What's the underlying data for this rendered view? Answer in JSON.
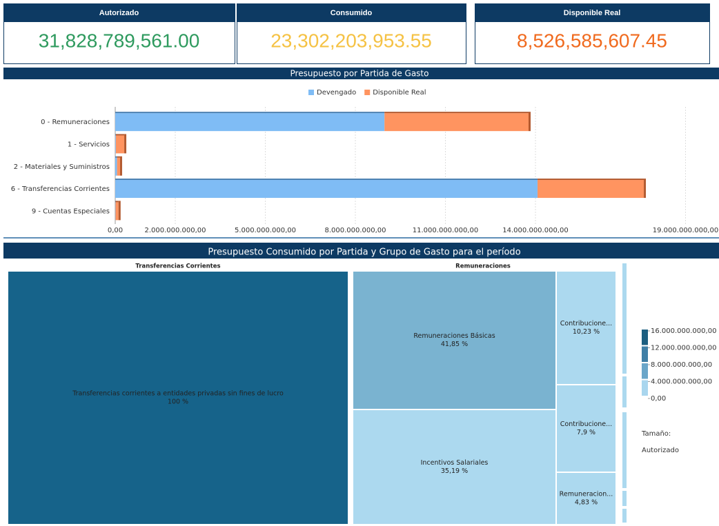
{
  "kpis": [
    {
      "label": "Autorizado",
      "value": "31,828,789,561.00",
      "color": "#2e9a5e"
    },
    {
      "label": "Consumido",
      "value": "23,302,203,953.55",
      "color": "#f5c244"
    },
    {
      "label": "Disponible Real",
      "value": "8,526,585,607.45",
      "color": "#f06a1e"
    }
  ],
  "bar_chart": {
    "type": "bar",
    "orientation": "horizontal",
    "stacked": true,
    "title": "Presupuesto por Partida de Gasto",
    "categories": [
      "0 - Remuneraciones",
      "1 - Servicios",
      "2 - Materiales y Suministros",
      "6 - Transferencias Corrientes",
      "9 - Cuentas Especiales"
    ],
    "series": [
      {
        "name": "Devengado",
        "color": "#7fbcf5",
        "values": [
          8970000000,
          20000000,
          60000000,
          14070000000,
          10000000
        ]
      },
      {
        "name": "Disponible Real",
        "color": "#ff9460",
        "values": [
          4800000000,
          280000000,
          100000000,
          3540000000,
          100000000
        ]
      }
    ],
    "xlim": [
      0,
      20000000000
    ],
    "xticks": [
      {
        "value": 0,
        "label": "0,00"
      },
      {
        "value": 2000000000,
        "label": "2.000.000.000,00"
      },
      {
        "value": 5000000000,
        "label": "5.000.000.000,00"
      },
      {
        "value": 8000000000,
        "label": "8.000.000.000,00"
      },
      {
        "value": 11000000000,
        "label": "11.000.000.000,00"
      },
      {
        "value": 14000000000,
        "label": "14.000.000.000,00"
      },
      {
        "value": 19000000000,
        "label": "19.000.000.000,00"
      }
    ],
    "grid": true,
    "legend": "top"
  },
  "treemap": {
    "title": "Presupuesto Consumido por Partida y Grupo de Gasto para el período",
    "groups": [
      {
        "name": "Transferencias Corrientes",
        "cells": [
          {
            "label": "Transferencias corrientes a entidades privadas sin fines de lucro",
            "value": 100,
            "value_label": "100 %",
            "color": "#16638a"
          }
        ]
      },
      {
        "name": "Remuneraciones",
        "cells": [
          {
            "label": "Remuneraciones Básicas",
            "value": 41.85,
            "value_label": "41,85 %",
            "color": "#7ab3d0"
          },
          {
            "label": "Incentivos Salariales",
            "value": 35.19,
            "value_label": "35,19 %",
            "color": "#acd9ef"
          },
          {
            "label": "Contribucione...",
            "value": 10.23,
            "value_label": "10,23 %",
            "color": "#acd9ef"
          },
          {
            "label": "Contribucione...",
            "value": 7.9,
            "value_label": "7,9 %",
            "color": "#acd9ef"
          },
          {
            "label": "Remuneracion...",
            "value": 4.83,
            "value_label": "4,83 %",
            "color": "#acd9ef"
          }
        ]
      }
    ],
    "color_scale": {
      "colors": [
        "#a9d6ee",
        "#6aa6c9",
        "#3f7fa6",
        "#1c5e80"
      ],
      "ticks": [
        {
          "value": 0,
          "label": "0,00"
        },
        {
          "value": 4000000000,
          "label": "4.000.000.000,00"
        },
        {
          "value": 8000000000,
          "label": "8.000.000.000,00"
        },
        {
          "value": 12000000000,
          "label": "12.000.000.000,00"
        },
        {
          "value": 16000000000,
          "label": "16.000.000.000,00"
        }
      ]
    },
    "size_label": "Tamaño:",
    "size_measure": "Autorizado"
  }
}
